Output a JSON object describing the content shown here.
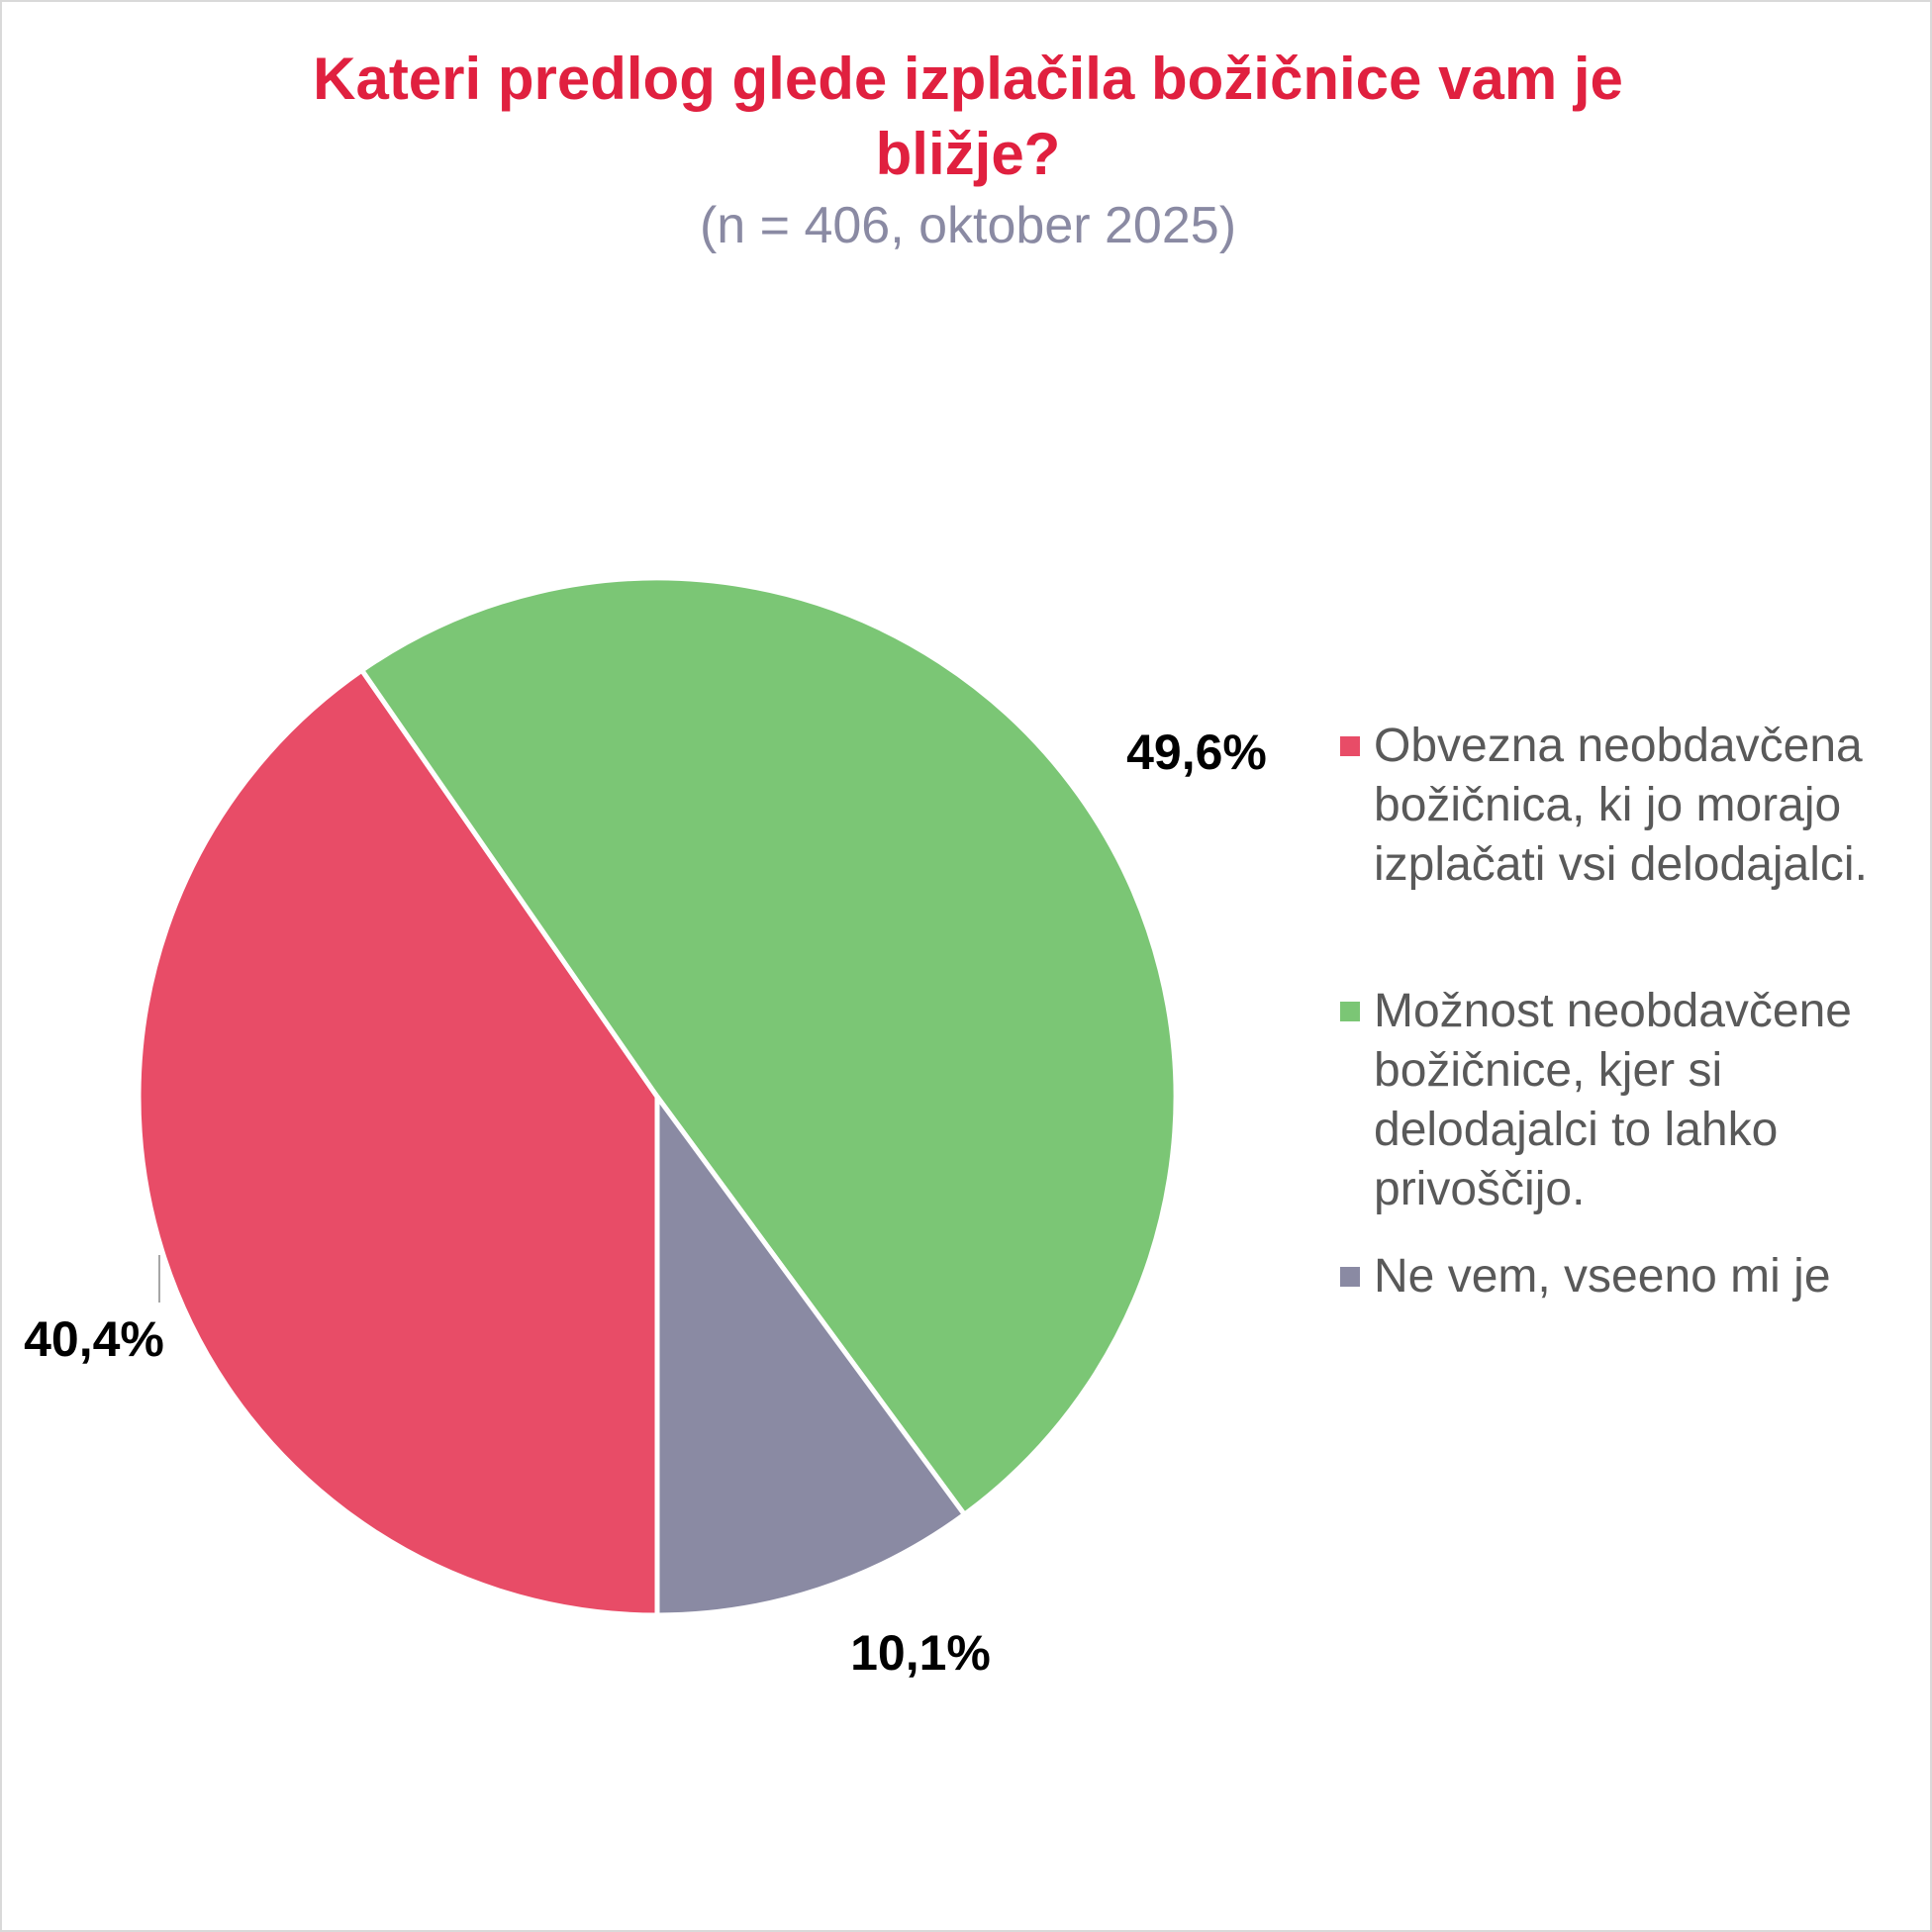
{
  "chart_data": {
    "type": "pie",
    "title": "Kateri predlog glede izplačila božičnice vam je bližje?",
    "subtitle": "(n = 406, oktober 2025)",
    "categories": [
      "Obvezna neobdavčena božičnica, ki jo morajo izplačati vsi delodajalci.",
      "Možnost neobdavčene božičnice, kjer si delodajalci to lahko privoščijo.",
      "Ne vem, vseeno mi je"
    ],
    "values": [
      40.4,
      49.6,
      10.1
    ],
    "value_labels": [
      "40,4%",
      "49,6%",
      "10,1%"
    ],
    "colors": [
      "#e84c67",
      "#7bc675",
      "#8a8aa3"
    ],
    "legend": "right"
  }
}
